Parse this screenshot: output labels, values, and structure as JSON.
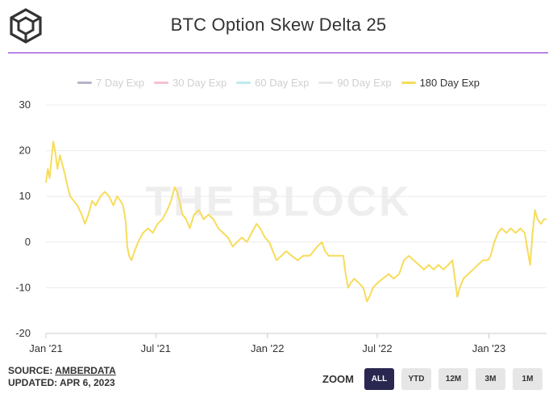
{
  "header": {
    "title": "BTC Option Skew Delta 25",
    "logo_icon": "cube-logo-icon"
  },
  "legend": [
    {
      "label": "7 Day Exp",
      "color": "#b7b2c8",
      "text_color": "#cfcfcf",
      "active": false
    },
    {
      "label": "30 Day Exp",
      "color": "#f6c1cf",
      "text_color": "#cfcfcf",
      "active": false
    },
    {
      "label": "60 Day Exp",
      "color": "#bfe9ee",
      "text_color": "#cfcfcf",
      "active": false
    },
    {
      "label": "90 Day Exp",
      "color": "#e8e8ec",
      "text_color": "#cfcfcf",
      "active": false
    },
    {
      "label": "180 Day Exp",
      "color": "#f7dc5a",
      "text_color": "#333333",
      "active": true
    }
  ],
  "watermark": "THE BLOCK",
  "chart_data": {
    "type": "line",
    "title": "BTC Option Skew Delta 25",
    "ylim": [
      -20,
      30
    ],
    "yticks": [
      "30",
      "20",
      "10",
      "0",
      "-10",
      "-20"
    ],
    "xticks": [
      {
        "label": "Jan '21",
        "date": "2021-01-01"
      },
      {
        "label": "Jul '21",
        "date": "2021-07-01"
      },
      {
        "label": "Jan '22",
        "date": "2022-01-01"
      },
      {
        "label": "Jul '22",
        "date": "2022-07-01"
      },
      {
        "label": "Jan '23",
        "date": "2023-01-01"
      }
    ],
    "xrange": [
      "2021-01-01",
      "2023-04-06"
    ],
    "grid": "horizontal",
    "legend_position": "top",
    "series": [
      {
        "name": "180 Day Exp",
        "color": "#f7dc5a",
        "points": [
          [
            "2021-01-01",
            13
          ],
          [
            "2021-01-04",
            16
          ],
          [
            "2021-01-07",
            14
          ],
          [
            "2021-01-10",
            18
          ],
          [
            "2021-01-13",
            22
          ],
          [
            "2021-01-16",
            20
          ],
          [
            "2021-01-20",
            16
          ],
          [
            "2021-01-24",
            19
          ],
          [
            "2021-01-28",
            17
          ],
          [
            "2021-02-01",
            15
          ],
          [
            "2021-02-06",
            12
          ],
          [
            "2021-02-10",
            10
          ],
          [
            "2021-02-16",
            9
          ],
          [
            "2021-02-22",
            8
          ],
          [
            "2021-03-01",
            6
          ],
          [
            "2021-03-06",
            4
          ],
          [
            "2021-03-12",
            6
          ],
          [
            "2021-03-18",
            9
          ],
          [
            "2021-03-24",
            8
          ],
          [
            "2021-04-01",
            10
          ],
          [
            "2021-04-08",
            11
          ],
          [
            "2021-04-15",
            10
          ],
          [
            "2021-04-22",
            8
          ],
          [
            "2021-04-28",
            10
          ],
          [
            "2021-05-04",
            9
          ],
          [
            "2021-05-08",
            8
          ],
          [
            "2021-05-12",
            5
          ],
          [
            "2021-05-15",
            -1
          ],
          [
            "2021-05-18",
            -3
          ],
          [
            "2021-05-22",
            -4
          ],
          [
            "2021-05-27",
            -2
          ],
          [
            "2021-06-02",
            0
          ],
          [
            "2021-06-10",
            2
          ],
          [
            "2021-06-18",
            3
          ],
          [
            "2021-06-26",
            2
          ],
          [
            "2021-07-04",
            4
          ],
          [
            "2021-07-12",
            5
          ],
          [
            "2021-07-20",
            7
          ],
          [
            "2021-07-26",
            9
          ],
          [
            "2021-08-01",
            12
          ],
          [
            "2021-08-05",
            11
          ],
          [
            "2021-08-09",
            9
          ],
          [
            "2021-08-14",
            6
          ],
          [
            "2021-08-20",
            5
          ],
          [
            "2021-08-26",
            3
          ],
          [
            "2021-09-02",
            6
          ],
          [
            "2021-09-10",
            7
          ],
          [
            "2021-09-18",
            5
          ],
          [
            "2021-09-26",
            6
          ],
          [
            "2021-10-04",
            5
          ],
          [
            "2021-10-12",
            3
          ],
          [
            "2021-10-20",
            2
          ],
          [
            "2021-10-28",
            1
          ],
          [
            "2021-11-05",
            -1
          ],
          [
            "2021-11-12",
            0
          ],
          [
            "2021-11-20",
            1
          ],
          [
            "2021-11-28",
            0
          ],
          [
            "2021-12-06",
            2
          ],
          [
            "2021-12-14",
            4
          ],
          [
            "2021-12-20",
            3
          ],
          [
            "2021-12-28",
            1
          ],
          [
            "2022-01-04",
            0
          ],
          [
            "2022-01-10",
            -2
          ],
          [
            "2022-01-16",
            -4
          ],
          [
            "2022-01-24",
            -3
          ],
          [
            "2022-02-01",
            -2
          ],
          [
            "2022-02-10",
            -3
          ],
          [
            "2022-02-20",
            -4
          ],
          [
            "2022-03-01",
            -3
          ],
          [
            "2022-03-12",
            -3
          ],
          [
            "2022-03-24",
            -1
          ],
          [
            "2022-04-01",
            0
          ],
          [
            "2022-04-06",
            -2
          ],
          [
            "2022-04-12",
            -3
          ],
          [
            "2022-04-20",
            -3
          ],
          [
            "2022-04-28",
            -3
          ],
          [
            "2022-05-06",
            -3
          ],
          [
            "2022-05-10",
            -7
          ],
          [
            "2022-05-14",
            -10
          ],
          [
            "2022-05-18",
            -9
          ],
          [
            "2022-05-24",
            -8
          ],
          [
            "2022-06-01",
            -9
          ],
          [
            "2022-06-08",
            -10
          ],
          [
            "2022-06-14",
            -13
          ],
          [
            "2022-06-18",
            -12
          ],
          [
            "2022-06-24",
            -10
          ],
          [
            "2022-07-01",
            -9
          ],
          [
            "2022-07-10",
            -8
          ],
          [
            "2022-07-20",
            -7
          ],
          [
            "2022-07-28",
            -8
          ],
          [
            "2022-08-06",
            -7
          ],
          [
            "2022-08-14",
            -4
          ],
          [
            "2022-08-22",
            -3
          ],
          [
            "2022-08-30",
            -4
          ],
          [
            "2022-09-08",
            -5
          ],
          [
            "2022-09-16",
            -6
          ],
          [
            "2022-09-24",
            -5
          ],
          [
            "2022-10-02",
            -6
          ],
          [
            "2022-10-10",
            -5
          ],
          [
            "2022-10-18",
            -6
          ],
          [
            "2022-10-26",
            -5
          ],
          [
            "2022-11-02",
            -4
          ],
          [
            "2022-11-06",
            -8
          ],
          [
            "2022-11-10",
            -12
          ],
          [
            "2022-11-14",
            -10
          ],
          [
            "2022-11-20",
            -8
          ],
          [
            "2022-11-28",
            -7
          ],
          [
            "2022-12-06",
            -6
          ],
          [
            "2022-12-14",
            -5
          ],
          [
            "2022-12-22",
            -4
          ],
          [
            "2022-12-30",
            -4
          ],
          [
            "2023-01-04",
            -3
          ],
          [
            "2023-01-10",
            0
          ],
          [
            "2023-01-16",
            2
          ],
          [
            "2023-01-22",
            3
          ],
          [
            "2023-01-30",
            2
          ],
          [
            "2023-02-06",
            3
          ],
          [
            "2023-02-14",
            2
          ],
          [
            "2023-02-22",
            3
          ],
          [
            "2023-03-01",
            2
          ],
          [
            "2023-03-06",
            -2
          ],
          [
            "2023-03-10",
            -5
          ],
          [
            "2023-03-14",
            2
          ],
          [
            "2023-03-18",
            7
          ],
          [
            "2023-03-22",
            5
          ],
          [
            "2023-03-28",
            4
          ],
          [
            "2023-04-02",
            5
          ],
          [
            "2023-04-06",
            5
          ]
        ]
      }
    ]
  },
  "footer": {
    "source_label": "SOURCE: ",
    "source_link": "AMBERDATA",
    "updated": "UPDATED: APR 6, 2023"
  },
  "zoom": {
    "label": "ZOOM",
    "options": [
      {
        "label": "ALL",
        "active": true
      },
      {
        "label": "YTD",
        "active": false
      },
      {
        "label": "12M",
        "active": false
      },
      {
        "label": "3M",
        "active": false
      },
      {
        "label": "1M",
        "active": false
      }
    ]
  }
}
